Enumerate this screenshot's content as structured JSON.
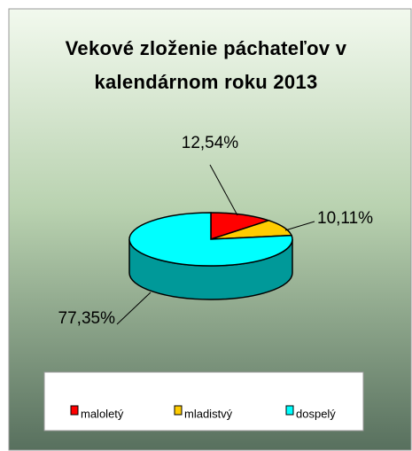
{
  "chart_data": {
    "type": "pie",
    "title": "Vekové zloženie páchateľov v kalendárnom roku 2013",
    "categories": [
      "maloletý",
      "mladistvý",
      "dospelý"
    ],
    "values": [
      12.54,
      10.11,
      77.35
    ],
    "value_labels": [
      "12,54%",
      "10,11%",
      "77,35%"
    ],
    "colors": [
      "#ff0000",
      "#ffcc00",
      "#00ffff"
    ],
    "legend": "bottom"
  }
}
